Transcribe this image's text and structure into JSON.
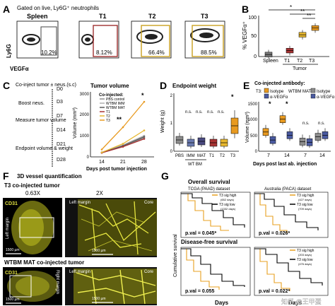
{
  "panelA": {
    "letter": "A",
    "gate": "Gated on live, Ly6G⁺ neutrophils",
    "ylab": "Ly6G",
    "xlab": "VEGFα",
    "boxes": [
      {
        "name": "Spleen",
        "pct": "10.2%",
        "color": "#444444"
      },
      {
        "name": "T1",
        "pct": "8.12%",
        "color": "#a03030"
      },
      {
        "name": "T2",
        "pct": "66.4%",
        "color": "#c9a020"
      },
      {
        "name": "T3",
        "pct": "88.5%",
        "color": "#c9a020"
      }
    ]
  },
  "panelB": {
    "letter": "B",
    "ylabel": "% VEGFα⁺",
    "xlabel": "Tumor",
    "ticks": [
      "100",
      "50",
      "0"
    ],
    "categories": [
      "Spleen",
      "T1",
      "T2",
      "T3"
    ],
    "sig": [
      "*",
      "**",
      "**"
    ]
  },
  "panelC": {
    "letter": "C",
    "steps": [
      "Co-inject tumor ± neus.(s.c)",
      "Boost neus.",
      "Measure tumor volume",
      "Endpoint volume & weight"
    ],
    "days": [
      "D0",
      "D3",
      "D7",
      "D14",
      "D21",
      "D28"
    ],
    "title": "Tumor volume",
    "ylabel": "Volume (mm³)",
    "xlabel": "Days post tumor injection",
    "yticks": [
      "3000",
      "2000",
      "1000",
      "0"
    ],
    "xticks": [
      "14",
      "21",
      "28"
    ],
    "legend_title": "Co-injected:",
    "legend": [
      "PBS control",
      "WTBM IMM",
      "WTBM MAT",
      "T1",
      "T2",
      "T3"
    ],
    "sig": [
      "**",
      "*"
    ]
  },
  "chart_data": [
    {
      "type": "box",
      "panel": "B",
      "categories": [
        "Spleen",
        "T1",
        "T2",
        "T3"
      ],
      "values": [
        5,
        15,
        55,
        72
      ],
      "ylim": [
        0,
        100
      ],
      "ylabel": "% VEGFα⁺",
      "xlabel": "Tumor"
    },
    {
      "type": "line",
      "panel": "C",
      "title": "Tumor volume",
      "x": [
        14,
        21,
        28
      ],
      "series": [
        {
          "name": "PBS control",
          "color": "#8c8c8c",
          "values": [
            200,
            500,
            900
          ]
        },
        {
          "name": "WTBM IMM",
          "color": "#b0b0b0",
          "values": [
            220,
            560,
            1000
          ]
        },
        {
          "name": "WTBM MAT",
          "color": "#5a5a5a",
          "values": [
            200,
            520,
            950
          ]
        },
        {
          "name": "T1",
          "color": "#a83232",
          "values": [
            190,
            480,
            850
          ]
        },
        {
          "name": "T2",
          "color": "#e8b830",
          "values": [
            210,
            620,
            1250
          ]
        },
        {
          "name": "T3",
          "color": "#e89a20",
          "values": [
            350,
            1400,
            2600
          ]
        }
      ],
      "ylim": [
        0,
        3000
      ],
      "xlabel": "Days post tumor injection",
      "ylabel": "Volume (mm³)"
    },
    {
      "type": "box",
      "panel": "D",
      "title": "Endpoint weight",
      "categories": [
        "PBS",
        "IMM",
        "MAT",
        "T1",
        "T2",
        "T3"
      ],
      "values": [
        0.4,
        0.3,
        0.35,
        0.3,
        0.3,
        0.9
      ],
      "colors": [
        "#8c8c8c",
        "#6a7ab0",
        "#4a4a80",
        "#a83232",
        "#e8b830",
        "#e89a20"
      ],
      "ylim": [
        0,
        2
      ],
      "ylabel": "Weight (g)"
    },
    {
      "type": "box",
      "panel": "E",
      "title": "Co-injected antibody:",
      "categories": [
        "7",
        "14",
        "7",
        "14"
      ],
      "series": [
        {
          "name": "T3: Isotype",
          "values": [
            600,
            1000,
            0,
            0
          ]
        },
        {
          "name": "T3: α-VEGFα",
          "values": [
            350,
            500,
            0,
            0
          ]
        },
        {
          "name": "WTBM MAT: Isotype",
          "values": [
            0,
            0,
            300,
            450
          ]
        },
        {
          "name": "WTBM MAT: α-VEGFα",
          "values": [
            0,
            0,
            280,
            500
          ]
        }
      ],
      "ylim": [
        0,
        1500
      ],
      "xlabel": "Days post last ab. injection",
      "ylabel": "Volume (mm³)"
    },
    {
      "type": "line",
      "panel": "G",
      "title": "Overall survival",
      "series": [
        {
          "name": "T3 sig high"
        },
        {
          "name": "T3 sig low"
        }
      ]
    }
  ],
  "panelD": {
    "letter": "D",
    "title": "Endpoint weight",
    "ylabel": "Weight (g)",
    "yticks": [
      "2",
      "1",
      "0"
    ],
    "categories": [
      "PBS",
      "IMM",
      "MAT",
      "T1",
      "T2",
      "T3"
    ],
    "group_label": "WT BM",
    "ns": [
      "n.s.",
      "n.s.",
      "n.s.",
      "n.s."
    ],
    "star": "*"
  },
  "panelE": {
    "letter": "E",
    "title": "Co-injected antibody:",
    "t3_label": "T3:",
    "wt_label": "WTBM MAT:",
    "leg1": "Isotype",
    "leg2": "α-VEGFα",
    "ylabel": "Volume (mm³)",
    "yticks": [
      "1500",
      "1000",
      "500",
      "0"
    ],
    "xticks": [
      "7",
      "14",
      "7",
      "14"
    ],
    "xlabel": "Days post last ab. injection",
    "sig": [
      "*",
      "*",
      "n.s.",
      "n.s."
    ]
  },
  "panelF": {
    "letter": "F",
    "title": "3D vessel quantification",
    "t3_title": "T3 co-injected tumor",
    "wt_title": "WTBM MAT co-injected tumor",
    "mag1": "0.63X",
    "mag2": "2X",
    "cd31": "CD31",
    "left_margin": "Left margin",
    "core": "Core",
    "right_margin": "Right margin",
    "scale1": "1500 µm",
    "scale2": "1500 µm",
    "scale3": "1500 µm",
    "scale4": "1500 µm"
  },
  "panelG": {
    "letter": "G",
    "os_title": "Overall survival",
    "dfs_title": "Disease-free survival",
    "tcga": "TCGA (PAAD) dataset",
    "paca": "Australia (PACA) dataset",
    "ylabel": "Cumulative survival",
    "xlabel": "Days",
    "legend_high": "T3 sig high",
    "legend_low": "T3 sig low",
    "n1a": "(652 days)",
    "n1b": "(1332 days)",
    "n2a": "(427 days)",
    "n2b": "(709 days)",
    "n3a": "(203 days)",
    "n3b": "(476 days)",
    "p1": "p.val = 0.045*",
    "p2": "p.val = 0.026*",
    "p3": "p.val = 0.055",
    "p4": "p.val = 0.022*",
    "watermark": "知乎 @王甲蛋"
  },
  "colors": {
    "t1": "#a83232",
    "t2": "#e8b830",
    "t3": "#e89a20",
    "grey": "#8c8c8c",
    "blue": "#4a5aa0",
    "yellow": "#d8c830"
  }
}
